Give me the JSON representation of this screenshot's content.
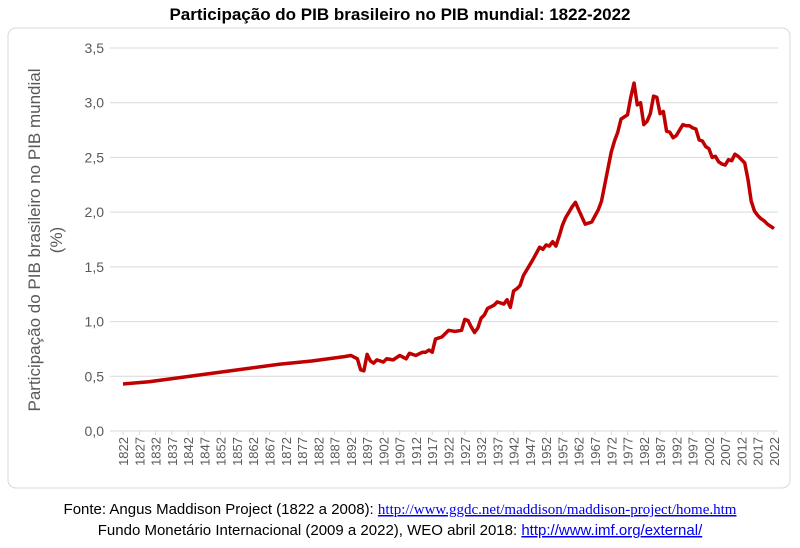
{
  "chart_data": {
    "type": "line",
    "title": "Participação do PIB brasileiro no PIB mundial: 1822-2022",
    "ylabel": [
      "Participação do PIB brasileiro no PIB mundial",
      "(%)"
    ],
    "xlim": [
      1822,
      2022
    ],
    "xticks": [
      1822,
      1827,
      1832,
      1837,
      1842,
      1847,
      1852,
      1857,
      1862,
      1867,
      1872,
      1877,
      1882,
      1887,
      1892,
      1897,
      1902,
      1907,
      1912,
      1917,
      1922,
      1927,
      1932,
      1937,
      1942,
      1947,
      1952,
      1957,
      1962,
      1967,
      1972,
      1977,
      1982,
      1987,
      1992,
      1997,
      2002,
      2007,
      2012,
      2017,
      2022
    ],
    "ylim": [
      0,
      3.5
    ],
    "yticks": [
      {
        "value": 0,
        "label": "0,0"
      },
      {
        "value": 0.5,
        "label": "0,5"
      },
      {
        "value": 1,
        "label": "1,0"
      },
      {
        "value": 1.5,
        "label": "1,5"
      },
      {
        "value": 2,
        "label": "2,0"
      },
      {
        "value": 2.5,
        "label": "2,5"
      },
      {
        "value": 3,
        "label": "3,0"
      },
      {
        "value": 3.5,
        "label": "3,5"
      }
    ],
    "grid": true,
    "series": [
      {
        "color": "#c00000",
        "x": [
          1822,
          1830,
          1840,
          1850,
          1860,
          1870,
          1880,
          1890,
          1892,
          1894,
          1895,
          1896,
          1897,
          1898,
          1899,
          1900,
          1902,
          1903,
          1905,
          1907,
          1909,
          1910,
          1912,
          1914,
          1915,
          1916,
          1917,
          1918,
          1920,
          1922,
          1924,
          1926,
          1927,
          1928,
          1929,
          1930,
          1931,
          1932,
          1933,
          1934,
          1936,
          1937,
          1939,
          1940,
          1941,
          1942,
          1943,
          1944,
          1945,
          1946,
          1947,
          1948,
          1950,
          1951,
          1952,
          1953,
          1954,
          1955,
          1956,
          1957,
          1958,
          1960,
          1961,
          1962,
          1964,
          1966,
          1968,
          1969,
          1970,
          1972,
          1973,
          1974,
          1975,
          1976,
          1977,
          1978,
          1979,
          1980,
          1981,
          1982,
          1983,
          1984,
          1985,
          1986,
          1987,
          1988,
          1989,
          1990,
          1991,
          1992,
          1993,
          1994,
          1995,
          1996,
          1997,
          1998,
          1999,
          2000,
          2001,
          2002,
          2003,
          2004,
          2005,
          2006,
          2007,
          2008,
          2009,
          2010,
          2011,
          2012,
          2013,
          2014,
          2015,
          2016,
          2017,
          2018,
          2019,
          2020,
          2021,
          2022
        ],
        "values": [
          0.43,
          0.45,
          0.49,
          0.53,
          0.57,
          0.61,
          0.64,
          0.68,
          0.69,
          0.66,
          0.56,
          0.55,
          0.7,
          0.64,
          0.62,
          0.65,
          0.63,
          0.66,
          0.65,
          0.69,
          0.66,
          0.71,
          0.69,
          0.72,
          0.72,
          0.74,
          0.72,
          0.84,
          0.86,
          0.92,
          0.91,
          0.92,
          1.02,
          1.01,
          0.95,
          0.9,
          0.94,
          1.03,
          1.06,
          1.12,
          1.15,
          1.18,
          1.16,
          1.2,
          1.13,
          1.28,
          1.3,
          1.33,
          1.42,
          1.47,
          1.52,
          1.57,
          1.68,
          1.66,
          1.7,
          1.69,
          1.73,
          1.69,
          1.78,
          1.88,
          1.95,
          2.05,
          2.09,
          2.02,
          1.89,
          1.91,
          2.02,
          2.1,
          2.25,
          2.55,
          2.65,
          2.73,
          2.85,
          2.87,
          2.89,
          3.05,
          3.18,
          2.98,
          3.0,
          2.8,
          2.83,
          2.9,
          3.06,
          3.05,
          2.9,
          2.92,
          2.74,
          2.73,
          2.68,
          2.7,
          2.75,
          2.8,
          2.79,
          2.79,
          2.77,
          2.76,
          2.66,
          2.65,
          2.6,
          2.58,
          2.5,
          2.51,
          2.46,
          2.44,
          2.43,
          2.48,
          2.47,
          2.53,
          2.51,
          2.48,
          2.45,
          2.3,
          2.1,
          2.01,
          1.97,
          1.94,
          1.92,
          1.89,
          1.87,
          1.85
        ]
      }
    ]
  },
  "footer": {
    "line1_text": "Fonte: Angus Maddison Project (1822 a 2008): ",
    "line1_link": "http://www.ggdc.net/maddison/maddison-project/home.htm",
    "line2_text": "Fundo Monetário Internacional (2009 a 2022), WEO abril 2018: ",
    "line2_link": "http://www.imf.org/external/"
  }
}
